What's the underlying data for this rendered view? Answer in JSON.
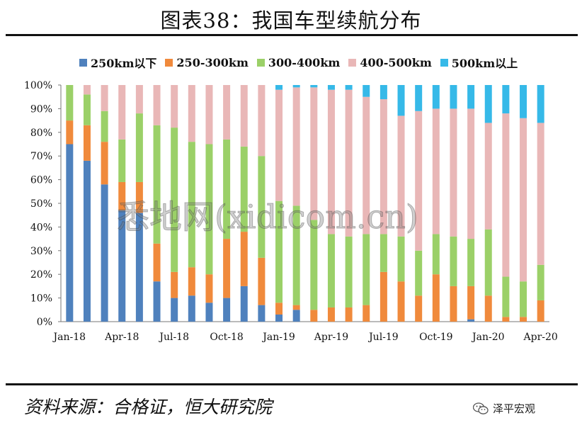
{
  "header": {
    "title": "图表38：我国车型续航分布"
  },
  "footer": {
    "source": "资料来源：合格证，恒大研究院",
    "account": "泽平宏观"
  },
  "watermark": "悉地网(xidicom.cn)",
  "colors": {
    "s250": "#4f81bd",
    "s250_300": "#f08a3c",
    "s300_400": "#9bd068",
    "s400_500": "#e9b7b7",
    "s500": "#36b9e8"
  },
  "chart_data": {
    "type": "bar",
    "stacked": true,
    "title": "图表38：我国车型续航分布",
    "legend_position": "top",
    "ylim": [
      0,
      100
    ],
    "yticks": [
      "0%",
      "10%",
      "20%",
      "30%",
      "40%",
      "50%",
      "60%",
      "70%",
      "80%",
      "90%",
      "100%"
    ],
    "xtick_labels": [
      "Jan-18",
      "Apr-18",
      "Jul-18",
      "Oct-18",
      "Jan-19",
      "Apr-19",
      "Jul-19",
      "Oct-19",
      "Jan-20",
      "Apr-20"
    ],
    "categories": [
      "Jan-18",
      "Feb-18",
      "Mar-18",
      "Apr-18",
      "May-18",
      "Jun-18",
      "Jul-18",
      "Aug-18",
      "Sep-18",
      "Oct-18",
      "Nov-18",
      "Dec-18",
      "Jan-19",
      "Feb-19",
      "Mar-19",
      "Apr-19",
      "May-19",
      "Jun-19",
      "Jul-19",
      "Aug-19",
      "Sep-19",
      "Oct-19",
      "Nov-19",
      "Dec-19",
      "Jan-20",
      "Feb-20",
      "Mar-20",
      "Apr-20"
    ],
    "series": [
      {
        "name": "250km以下",
        "color_key": "s250",
        "values": [
          75,
          68,
          58,
          47,
          46,
          17,
          10,
          11,
          8,
          10,
          15,
          7,
          3,
          5,
          0,
          0,
          0,
          0,
          0,
          0,
          0,
          0,
          0,
          1,
          0,
          0,
          0,
          0
        ]
      },
      {
        "name": "250-300km",
        "color_key": "s250_300",
        "values": [
          10,
          15,
          18,
          12,
          13,
          16,
          11,
          12,
          12,
          25,
          23,
          20,
          5,
          2,
          5,
          6,
          6,
          7,
          21,
          17,
          11,
          20,
          15,
          14,
          11,
          2,
          2,
          9
        ]
      },
      {
        "name": "300-400km",
        "color_key": "s300_400",
        "values": [
          15,
          13,
          13,
          18,
          29,
          50,
          61,
          53,
          55,
          42,
          36,
          43,
          43,
          42,
          38,
          31,
          30,
          30,
          16,
          19,
          19,
          17,
          21,
          20,
          28,
          17,
          15,
          15
        ]
      },
      {
        "name": "400-500km",
        "color_key": "s400_500",
        "values": [
          0,
          4,
          11,
          23,
          12,
          17,
          18,
          24,
          25,
          23,
          26,
          30,
          47,
          50,
          56,
          61,
          62,
          58,
          57,
          51,
          59,
          53,
          54,
          55,
          45,
          69,
          69,
          60
        ]
      },
      {
        "name": "500km以上",
        "color_key": "s500",
        "values": [
          0,
          0,
          0,
          0,
          0,
          0,
          0,
          0,
          0,
          0,
          0,
          0,
          2,
          1,
          1,
          2,
          2,
          5,
          6,
          13,
          11,
          10,
          10,
          10,
          16,
          12,
          14,
          16
        ]
      }
    ]
  }
}
